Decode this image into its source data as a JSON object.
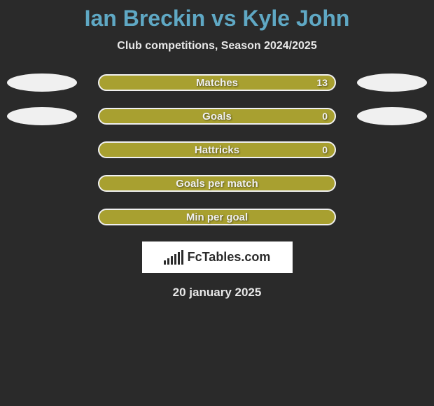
{
  "title": "Ian Breckin vs Kyle John",
  "subtitle": "Club competitions, Season 2024/2025",
  "stats": [
    {
      "label": "Matches",
      "value": "13",
      "show_left_ellipse": true,
      "show_right_ellipse": true
    },
    {
      "label": "Goals",
      "value": "0",
      "show_left_ellipse": true,
      "show_right_ellipse": true
    },
    {
      "label": "Hattricks",
      "value": "0",
      "show_left_ellipse": false,
      "show_right_ellipse": false
    },
    {
      "label": "Goals per match",
      "value": "",
      "show_left_ellipse": false,
      "show_right_ellipse": false
    },
    {
      "label": "Min per goal",
      "value": "",
      "show_left_ellipse": false,
      "show_right_ellipse": false
    }
  ],
  "logo_text": "FcTables.com",
  "date": "20 january 2025",
  "colors": {
    "background": "#2a2a2a",
    "title": "#5fa8c4",
    "text": "#e8e8e8",
    "bar_fill": "#a8a030",
    "bar_border": "#f0f0f0",
    "ellipse": "#f0f0f0",
    "logo_bg": "#ffffff"
  },
  "logo_bars": [
    6,
    9,
    12,
    15,
    18,
    21
  ]
}
